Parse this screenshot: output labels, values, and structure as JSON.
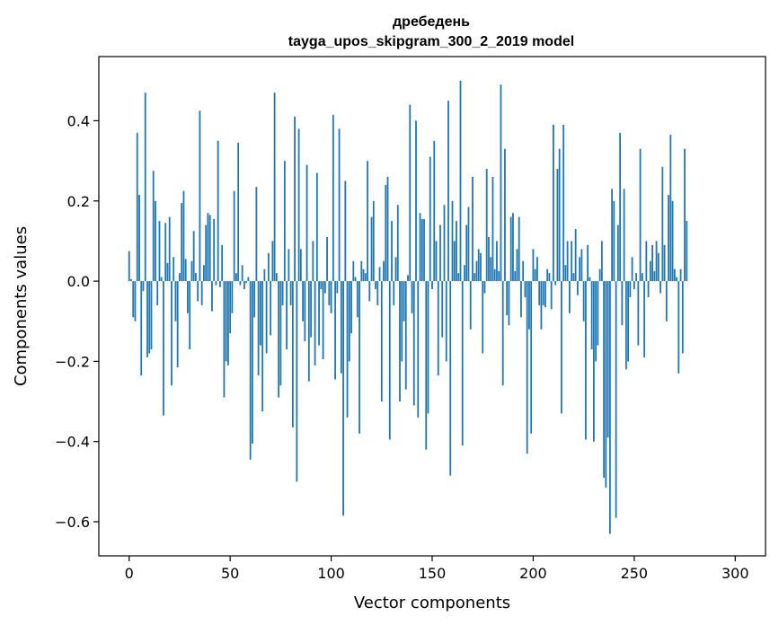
{
  "chart_data": {
    "type": "bar",
    "title_line1": "дребедень",
    "title_line2": "tayga_upos_skipgram_300_2_2019 model",
    "xlabel": "Vector components",
    "ylabel": "Components values",
    "xlim": [
      -15,
      315
    ],
    "ylim": [
      -0.685,
      0.56
    ],
    "xticks": [
      0,
      50,
      100,
      150,
      200,
      250,
      300
    ],
    "xtick_labels": [
      "0",
      "50",
      "100",
      "150",
      "200",
      "250",
      "300"
    ],
    "yticks": [
      -0.6,
      -0.4,
      -0.2,
      0.0,
      0.2,
      0.4
    ],
    "ytick_labels": [
      "−0.6",
      "−0.4",
      "−0.2",
      "0.0",
      "0.2",
      "0.4"
    ],
    "grid": false,
    "bar_color": "#1f77b4",
    "values": [
      0.075,
      0.005,
      -0.09,
      -0.1,
      0.37,
      0.215,
      -0.235,
      -0.025,
      0.47,
      -0.19,
      -0.18,
      -0.17,
      0.275,
      0.2,
      -0.06,
      0.15,
      0.01,
      -0.335,
      0.145,
      0.045,
      0.16,
      -0.26,
      0.06,
      -0.1,
      -0.215,
      0.02,
      0.195,
      0.225,
      0.055,
      -0.08,
      -0.17,
      0.05,
      0.125,
      0.02,
      -0.05,
      0.425,
      -0.06,
      0.04,
      0.14,
      0.17,
      0.165,
      -0.075,
      0.155,
      -0.01,
      0.35,
      -0.015,
      0.09,
      -0.29,
      -0.2,
      -0.21,
      -0.13,
      -0.08,
      0.225,
      0.02,
      0.345,
      -0.01,
      0.04,
      -0.02,
      -0.005,
      0.01,
      -0.445,
      -0.405,
      -0.09,
      0.235,
      -0.235,
      -0.16,
      -0.325,
      0.03,
      -0.18,
      0.07,
      -0.135,
      0.1,
      0.47,
      0.02,
      -0.29,
      -0.26,
      -0.06,
      0.3,
      -0.17,
      0.08,
      -0.06,
      -0.365,
      0.41,
      -0.5,
      0.38,
      0.08,
      -0.1,
      -0.15,
      0.29,
      -0.25,
      -0.14,
      0.1,
      -0.21,
      0.27,
      -0.16,
      -0.02,
      -0.195,
      -0.03,
      0.11,
      -0.06,
      -0.08,
      0.415,
      -0.245,
      -0.03,
      0.38,
      -0.23,
      -0.585,
      0.25,
      -0.34,
      -0.2,
      -0.13,
      0.05,
      0.01,
      -0.09,
      -0.38,
      0.05,
      0.03,
      0.02,
      0.3,
      -0.05,
      0.16,
      0.2,
      -0.02,
      -0.06,
      0.035,
      -0.3,
      0.05,
      0.24,
      0.26,
      -0.395,
      0.15,
      -0.06,
      0.06,
      0.19,
      -0.3,
      -0.2,
      -0.1,
      -0.27,
      0.015,
      0.44,
      -0.08,
      -0.31,
      0.4,
      -0.34,
      0.17,
      0.155,
      0.155,
      -0.42,
      -0.33,
      0.31,
      -0.02,
      0.35,
      0.1,
      -0.235,
      0.14,
      -0.14,
      0.19,
      -0.2,
      0.45,
      -0.485,
      0.2,
      0.1,
      0.15,
      0.02,
      0.5,
      -0.41,
      0.04,
      0.14,
      0.185,
      -0.12,
      0.26,
      0.02,
      0.05,
      0.08,
      0.07,
      -0.18,
      -0.03,
      0.28,
      0.11,
      0.06,
      0.26,
      0.03,
      0.1,
      0.025,
      0.49,
      -0.26,
      0.33,
      -0.085,
      -0.11,
      0.16,
      0.17,
      0.025,
      0.08,
      0.16,
      -0.09,
      0.05,
      -0.04,
      -0.43,
      -0.12,
      -0.38,
      0.08,
      0.03,
      0.06,
      -0.06,
      -0.12,
      -0.06,
      -0.065,
      0.03,
      0.02,
      -0.07,
      0.39,
      -0.01,
      0.28,
      0.33,
      -0.33,
      0.39,
      0.04,
      0.1,
      -0.08,
      0.1,
      0.02,
      0.13,
      -0.035,
      0.06,
      0.08,
      -0.1,
      -0.395,
      0.09,
      0.01,
      -0.17,
      -0.4,
      -0.2,
      -0.16,
      0.03,
      0.1,
      -0.49,
      -0.515,
      -0.39,
      -0.63,
      0.23,
      0.2,
      -0.59,
      0.14,
      0.37,
      -0.11,
      0.23,
      -0.22,
      -0.2,
      -0.04,
      0.06,
      -0.02,
      0.02,
      -0.16,
      0.33,
      0.02,
      -0.19,
      0.1,
      -0.04,
      0.05,
      0.09,
      0.025,
      0.1,
      0.07,
      -0.03,
      0.285,
      0.09,
      -0.1,
      0.215,
      0.365,
      0.2,
      0.03,
      0.01,
      -0.23,
      0.03,
      -0.18,
      0.33,
      0.15
    ]
  }
}
